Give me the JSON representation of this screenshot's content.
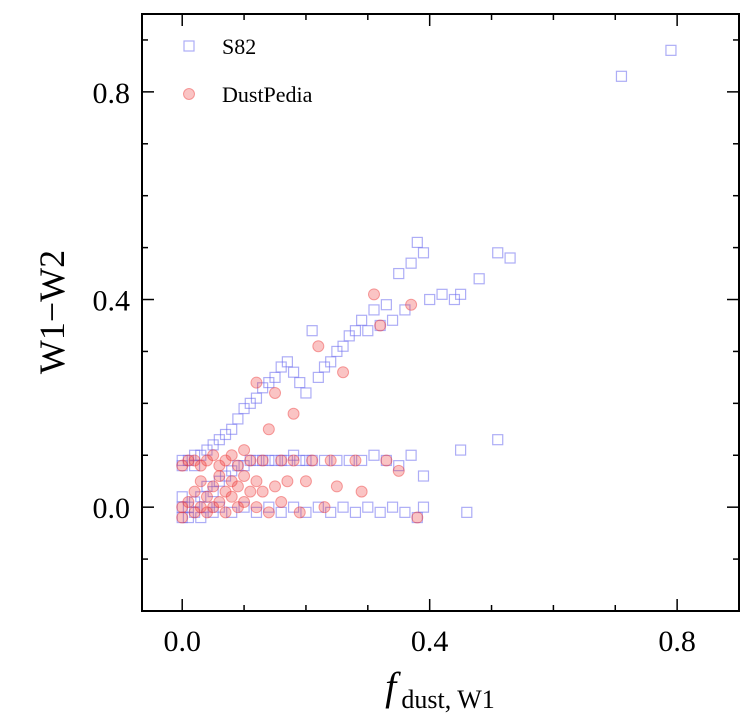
{
  "chart_data": {
    "type": "scatter",
    "title": "",
    "xlabel_main": "f",
    "xlabel_sub": "dust, W1",
    "ylabel": "W1−W2",
    "xlim": [
      -0.065,
      0.9
    ],
    "ylim": [
      -0.2,
      0.95
    ],
    "xticks": [
      0.0,
      0.4,
      0.8
    ],
    "xtick_labels": [
      "0.0",
      "0.4",
      "0.8"
    ],
    "yticks": [
      0.0,
      0.4,
      0.8
    ],
    "ytick_labels": [
      "0.0",
      "0.4",
      "0.8"
    ],
    "grid": false,
    "legend_position": "top-left",
    "series": [
      {
        "name": "S82",
        "marker": "square-open",
        "color": "#6a6aee",
        "points": [
          [
            0.0,
            -0.02
          ],
          [
            0.0,
            0.0
          ],
          [
            0.0,
            0.02
          ],
          [
            0.0,
            0.08
          ],
          [
            0.0,
            0.09
          ],
          [
            0.01,
            -0.02
          ],
          [
            0.01,
            0.0
          ],
          [
            0.01,
            0.09
          ],
          [
            0.02,
            -0.01
          ],
          [
            0.02,
            0.01
          ],
          [
            0.02,
            0.08
          ],
          [
            0.02,
            0.1
          ],
          [
            0.03,
            -0.02
          ],
          [
            0.03,
            0.02
          ],
          [
            0.03,
            0.1
          ],
          [
            0.04,
            0.0
          ],
          [
            0.04,
            0.04
          ],
          [
            0.04,
            0.11
          ],
          [
            0.05,
            -0.01
          ],
          [
            0.05,
            0.03
          ],
          [
            0.05,
            0.12
          ],
          [
            0.06,
            0.0
          ],
          [
            0.06,
            0.05
          ],
          [
            0.06,
            0.13
          ],
          [
            0.07,
            0.06
          ],
          [
            0.07,
            0.14
          ],
          [
            0.08,
            -0.01
          ],
          [
            0.08,
            0.07
          ],
          [
            0.08,
            0.15
          ],
          [
            0.09,
            0.08
          ],
          [
            0.09,
            0.17
          ],
          [
            0.1,
            0.0
          ],
          [
            0.1,
            0.08
          ],
          [
            0.1,
            0.19
          ],
          [
            0.11,
            0.09
          ],
          [
            0.11,
            0.2
          ],
          [
            0.12,
            -0.01
          ],
          [
            0.12,
            0.09
          ],
          [
            0.12,
            0.21
          ],
          [
            0.13,
            0.09
          ],
          [
            0.13,
            0.23
          ],
          [
            0.14,
            0.0
          ],
          [
            0.14,
            0.09
          ],
          [
            0.14,
            0.24
          ],
          [
            0.15,
            0.09
          ],
          [
            0.15,
            0.25
          ],
          [
            0.16,
            -0.01
          ],
          [
            0.16,
            0.09
          ],
          [
            0.16,
            0.27
          ],
          [
            0.17,
            0.09
          ],
          [
            0.17,
            0.28
          ],
          [
            0.18,
            0.0
          ],
          [
            0.18,
            0.1
          ],
          [
            0.18,
            0.26
          ],
          [
            0.19,
            0.09
          ],
          [
            0.19,
            0.24
          ],
          [
            0.2,
            -0.01
          ],
          [
            0.2,
            0.09
          ],
          [
            0.2,
            0.22
          ],
          [
            0.21,
            0.09
          ],
          [
            0.21,
            0.34
          ],
          [
            0.22,
            0.0
          ],
          [
            0.22,
            0.25
          ],
          [
            0.23,
            0.09
          ],
          [
            0.23,
            0.27
          ],
          [
            0.24,
            -0.01
          ],
          [
            0.24,
            0.28
          ],
          [
            0.25,
            0.09
          ],
          [
            0.25,
            0.3
          ],
          [
            0.26,
            0.0
          ],
          [
            0.26,
            0.31
          ],
          [
            0.27,
            0.09
          ],
          [
            0.27,
            0.33
          ],
          [
            0.28,
            -0.01
          ],
          [
            0.28,
            0.34
          ],
          [
            0.29,
            0.09
          ],
          [
            0.29,
            0.36
          ],
          [
            0.3,
            0.0
          ],
          [
            0.3,
            0.34
          ],
          [
            0.31,
            0.1
          ],
          [
            0.31,
            0.38
          ],
          [
            0.32,
            -0.01
          ],
          [
            0.32,
            0.35
          ],
          [
            0.33,
            0.09
          ],
          [
            0.33,
            0.39
          ],
          [
            0.34,
            0.0
          ],
          [
            0.34,
            0.36
          ],
          [
            0.35,
            0.08
          ],
          [
            0.35,
            0.45
          ],
          [
            0.36,
            -0.01
          ],
          [
            0.36,
            0.38
          ],
          [
            0.37,
            0.1
          ],
          [
            0.37,
            0.47
          ],
          [
            0.38,
            -0.02
          ],
          [
            0.38,
            0.51
          ],
          [
            0.39,
            0.06
          ],
          [
            0.39,
            0.49
          ],
          [
            0.39,
            0.0
          ],
          [
            0.4,
            0.4
          ],
          [
            0.42,
            0.41
          ],
          [
            0.44,
            0.4
          ],
          [
            0.45,
            0.41
          ],
          [
            0.45,
            0.11
          ],
          [
            0.46,
            -0.01
          ],
          [
            0.48,
            0.44
          ],
          [
            0.51,
            0.49
          ],
          [
            0.51,
            0.13
          ],
          [
            0.53,
            0.48
          ],
          [
            0.71,
            0.83
          ],
          [
            0.79,
            0.88
          ]
        ]
      },
      {
        "name": "DustPedia",
        "marker": "circle-filled",
        "color": "#ee3b3b",
        "points": [
          [
            0.0,
            -0.02
          ],
          [
            0.0,
            0.0
          ],
          [
            0.0,
            0.08
          ],
          [
            0.01,
            0.01
          ],
          [
            0.01,
            0.09
          ],
          [
            0.02,
            -0.01
          ],
          [
            0.02,
            0.03
          ],
          [
            0.02,
            0.09
          ],
          [
            0.03,
            0.0
          ],
          [
            0.03,
            0.05
          ],
          [
            0.03,
            0.08
          ],
          [
            0.04,
            -0.01
          ],
          [
            0.04,
            0.02
          ],
          [
            0.04,
            0.09
          ],
          [
            0.05,
            0.0
          ],
          [
            0.05,
            0.04
          ],
          [
            0.05,
            0.1
          ],
          [
            0.06,
            0.01
          ],
          [
            0.06,
            0.06
          ],
          [
            0.06,
            0.08
          ],
          [
            0.07,
            -0.01
          ],
          [
            0.07,
            0.03
          ],
          [
            0.07,
            0.09
          ],
          [
            0.08,
            0.02
          ],
          [
            0.08,
            0.05
          ],
          [
            0.08,
            0.1
          ],
          [
            0.09,
            0.0
          ],
          [
            0.09,
            0.04
          ],
          [
            0.09,
            0.08
          ],
          [
            0.1,
            0.01
          ],
          [
            0.1,
            0.06
          ],
          [
            0.1,
            0.11
          ],
          [
            0.11,
            0.03
          ],
          [
            0.11,
            0.09
          ],
          [
            0.12,
            0.0
          ],
          [
            0.12,
            0.05
          ],
          [
            0.12,
            0.24
          ],
          [
            0.13,
            0.03
          ],
          [
            0.13,
            0.09
          ],
          [
            0.14,
            -0.01
          ],
          [
            0.14,
            0.15
          ],
          [
            0.15,
            0.04
          ],
          [
            0.15,
            0.22
          ],
          [
            0.16,
            0.09
          ],
          [
            0.16,
            0.01
          ],
          [
            0.17,
            0.05
          ],
          [
            0.18,
            0.18
          ],
          [
            0.18,
            0.09
          ],
          [
            0.19,
            -0.01
          ],
          [
            0.2,
            0.05
          ],
          [
            0.21,
            0.09
          ],
          [
            0.22,
            0.31
          ],
          [
            0.23,
            0.0
          ],
          [
            0.24,
            0.09
          ],
          [
            0.25,
            0.04
          ],
          [
            0.26,
            0.26
          ],
          [
            0.28,
            0.09
          ],
          [
            0.29,
            0.03
          ],
          [
            0.31,
            0.41
          ],
          [
            0.32,
            0.35
          ],
          [
            0.33,
            0.09
          ],
          [
            0.35,
            0.07
          ],
          [
            0.37,
            0.39
          ],
          [
            0.38,
            -0.02
          ]
        ]
      }
    ]
  }
}
